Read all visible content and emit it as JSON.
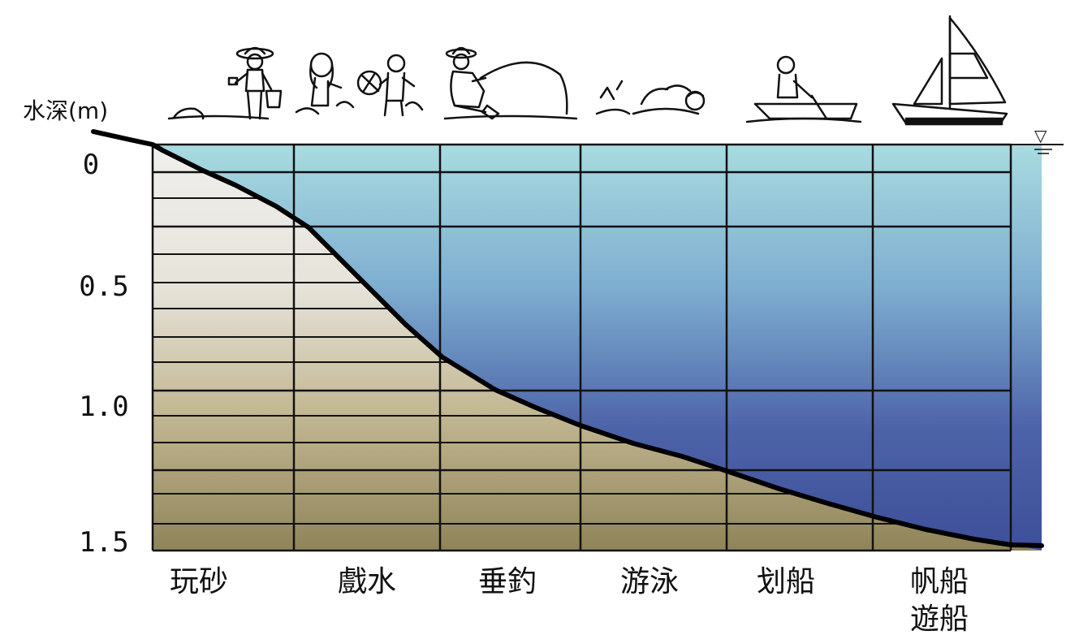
{
  "diagram": {
    "y_axis_label": "水深(m)",
    "depth_ticks": [
      "0",
      "0.5",
      "1.0",
      "1.5"
    ],
    "activities": [
      {
        "label": "玩砂",
        "icon": "sand-play-child-icon"
      },
      {
        "label": "戲水",
        "icon": "water-play-children-icon"
      },
      {
        "label": "垂釣",
        "icon": "fishing-person-icon"
      },
      {
        "label": "游泳",
        "icon": "swimmer-icon"
      },
      {
        "label": "划船",
        "icon": "rowing-boat-icon"
      },
      {
        "label": "帆船",
        "label2": "遊船",
        "icon": "sailboat-icon"
      }
    ],
    "water_level_symbol": "▽",
    "colors": {
      "water_top": "#a9dbe0",
      "water_bottom": "#3d4f99",
      "sand_top": "#f0efed",
      "sand_bottom": "#8f8458",
      "grid": "#111111",
      "profile": "#000000"
    }
  }
}
